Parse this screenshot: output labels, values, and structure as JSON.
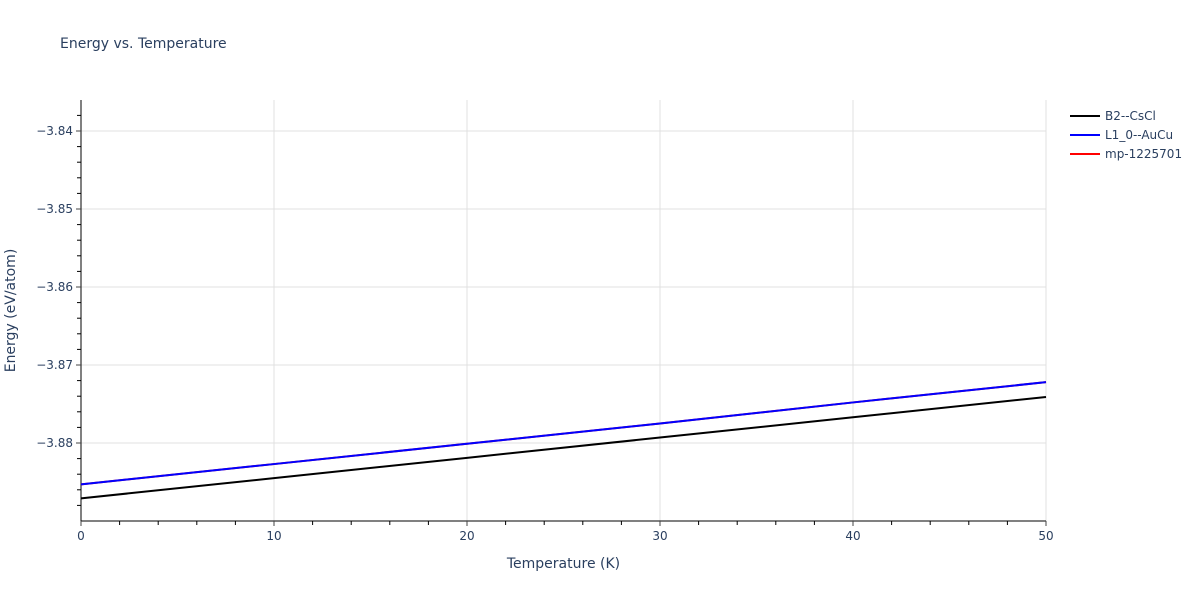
{
  "chart_data": {
    "type": "line",
    "title": "Energy vs. Temperature",
    "xlabel": "Temperature (K)",
    "ylabel": "Energy (eV/atom)",
    "xlim": [
      0,
      50
    ],
    "ylim": [
      -3.8896,
      -3.8361
    ],
    "x_ticks": [
      0,
      10,
      20,
      30,
      40,
      50
    ],
    "y_ticks": [
      -3.84,
      -3.85,
      -3.86,
      -3.87,
      -3.88
    ],
    "y_tick_labels": [
      "−3.84",
      "−3.85",
      "−3.86",
      "−3.87",
      "−3.88"
    ],
    "grid": true,
    "legend_position": "right",
    "series": [
      {
        "name": "B2--CsCl",
        "color": "#000000",
        "x": [
          0,
          10,
          20,
          30,
          40,
          50
        ],
        "values": [
          -3.8871,
          -3.8845,
          -3.8819,
          -3.8793,
          -3.8767,
          -3.8741
        ]
      },
      {
        "name": "L1_0--AuCu",
        "color": "#0000ff",
        "x": [
          0,
          10,
          20,
          30,
          40,
          50
        ],
        "values": [
          -3.8853,
          -3.8827,
          -3.8801,
          -3.8775,
          -3.8748,
          -3.8722
        ]
      },
      {
        "name": "mp-1225701",
        "color": "#ff0000",
        "x": [
          0,
          10,
          20,
          30,
          40,
          50
        ],
        "values": [
          -3.8853,
          -3.8827,
          -3.8801,
          -3.8775,
          -3.8748,
          -3.8722
        ]
      }
    ]
  },
  "legend": {
    "items": [
      {
        "label": "B2--CsCl",
        "color": "#000000"
      },
      {
        "label": "L1_0--AuCu",
        "color": "#0000ff"
      },
      {
        "label": "mp-1225701",
        "color": "#ff0000"
      }
    ]
  }
}
